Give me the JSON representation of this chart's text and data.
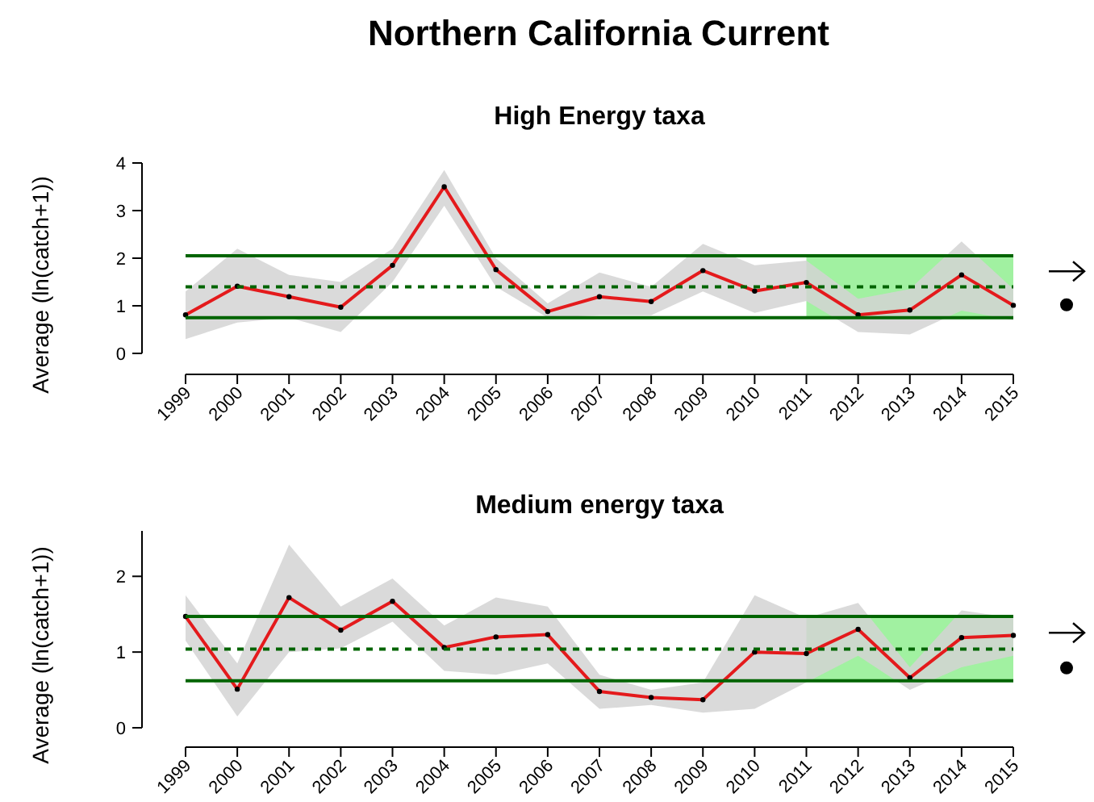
{
  "chart_data": [
    {
      "type": "line",
      "title": "Northern California Current",
      "subtitle": "High Energy taxa",
      "ylabel": "Average (ln(catch+1))",
      "categories": [
        "1999",
        "2000",
        "2001",
        "2002",
        "2003",
        "2004",
        "2005",
        "2006",
        "2007",
        "2008",
        "2009",
        "2010",
        "2011",
        "2012",
        "2013",
        "2014",
        "2015"
      ],
      "series": [
        {
          "color": "#e41a1c",
          "values": [
            0.81,
            1.41,
            1.19,
            0.97,
            1.85,
            3.5,
            1.76,
            0.88,
            1.19,
            1.09,
            1.74,
            1.31,
            1.49,
            0.81,
            0.91,
            1.65,
            1.01
          ],
          "lower": [
            0.3,
            0.65,
            0.75,
            0.45,
            1.5,
            3.1,
            1.4,
            0.75,
            0.8,
            0.8,
            1.3,
            0.85,
            1.1,
            0.45,
            0.4,
            0.9,
            0.7
          ],
          "upper": [
            1.3,
            2.2,
            1.65,
            1.5,
            2.2,
            3.85,
            2.0,
            1.05,
            1.7,
            1.4,
            2.3,
            1.85,
            1.95,
            1.15,
            1.35,
            2.35,
            1.35
          ]
        }
      ],
      "ylim": [
        0,
        4
      ],
      "yticks": [
        0,
        1,
        2,
        3,
        4
      ],
      "marker": "circle",
      "grid": false,
      "ref_lines": [
        {
          "axis": "y",
          "value": 2.05,
          "color": "#006400",
          "line_style": "solid"
        },
        {
          "axis": "y",
          "value": 1.4,
          "color": "#006400",
          "line_style": "dashed"
        },
        {
          "axis": "y",
          "value": 0.75,
          "color": "#006400",
          "line_style": "solid"
        }
      ],
      "bands": [
        {
          "axis": "x",
          "from": "2011",
          "to": "2015",
          "color": "#90ee90"
        }
      ]
    },
    {
      "type": "line",
      "title": "Medium energy taxa",
      "ylabel": "Average (ln(catch+1))",
      "categories": [
        "1999",
        "2000",
        "2001",
        "2002",
        "2003",
        "2004",
        "2005",
        "2006",
        "2007",
        "2008",
        "2009",
        "2010",
        "2011",
        "2012",
        "2013",
        "2014",
        "2015"
      ],
      "series": [
        {
          "color": "#e41a1c",
          "values": [
            1.47,
            0.51,
            1.72,
            1.29,
            1.67,
            1.06,
            1.2,
            1.23,
            0.48,
            0.4,
            0.37,
            1.0,
            0.98,
            1.3,
            0.66,
            1.19,
            1.22
          ],
          "lower": [
            1.15,
            0.15,
            1.0,
            1.05,
            1.4,
            0.75,
            0.7,
            0.85,
            0.25,
            0.3,
            0.2,
            0.25,
            0.6,
            0.95,
            0.5,
            0.8,
            0.95
          ],
          "upper": [
            1.75,
            0.85,
            2.42,
            1.6,
            1.97,
            1.35,
            1.72,
            1.6,
            0.7,
            0.5,
            0.6,
            1.75,
            1.45,
            1.65,
            0.8,
            1.55,
            1.45
          ]
        }
      ],
      "ylim": [
        0,
        2.6
      ],
      "yticks": [
        0,
        1,
        2
      ],
      "marker": "circle",
      "grid": false,
      "ref_lines": [
        {
          "axis": "y",
          "value": 1.47,
          "color": "#006400",
          "line_style": "solid"
        },
        {
          "axis": "y",
          "value": 1.04,
          "color": "#006400",
          "line_style": "dashed"
        },
        {
          "axis": "y",
          "value": 0.62,
          "color": "#006400",
          "line_style": "solid"
        }
      ],
      "bands": [
        {
          "axis": "x",
          "from": "2011",
          "to": "2015",
          "color": "#90ee90"
        }
      ]
    }
  ]
}
